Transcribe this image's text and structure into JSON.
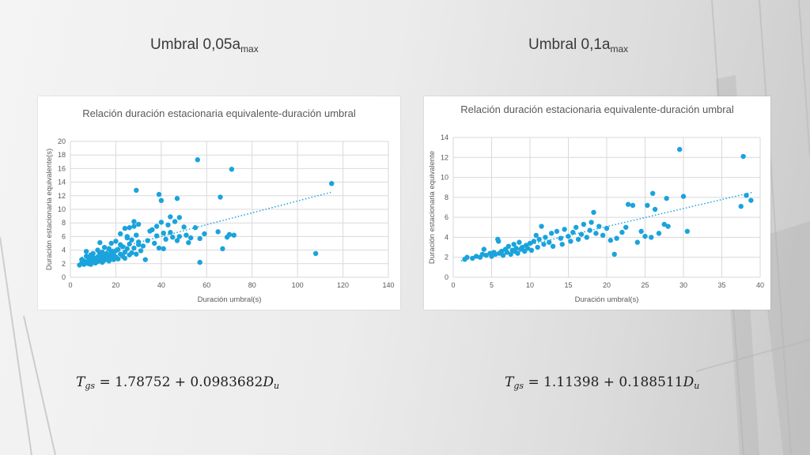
{
  "headings": [
    {
      "main": "Umbral 0,05a",
      "sub": "max"
    },
    {
      "main": "Umbral 0,1a",
      "sub": "max"
    }
  ],
  "formulas": [
    {
      "lhs": "T",
      "lhs_sub": "gs",
      "rhs": "= 1.78752 + 0.0983682",
      "var": "D",
      "var_sub": "u"
    },
    {
      "lhs": "T",
      "lhs_sub": "gs",
      "rhs": "= 1.11398 + 0.188511",
      "var": "D",
      "var_sub": "u"
    }
  ],
  "colors": {
    "marker": "#1aa3dc",
    "trend": "#1aa3dc",
    "grid": "#d9d9d9",
    "text": "#595959"
  },
  "chart_data": [
    {
      "type": "scatter",
      "title": "Relación duración estacionaria equivalente-duración umbral",
      "xlabel": "Duración umbral(s)",
      "ylabel": "Duración estacionaria equivalente(s)",
      "xlim": [
        0,
        140
      ],
      "ylim": [
        0,
        20
      ],
      "xticks": [
        0,
        20,
        40,
        60,
        80,
        100,
        120,
        140
      ],
      "yticks": [
        0,
        2,
        4,
        6,
        8,
        10,
        12,
        14,
        16,
        18,
        20
      ],
      "grid": true,
      "trendline": {
        "type": "linear",
        "style": "dotted",
        "x_range": [
          5,
          115
        ]
      },
      "points": [
        [
          4,
          1.8
        ],
        [
          5,
          2.1
        ],
        [
          5,
          2.6
        ],
        [
          6,
          1.9
        ],
        [
          6,
          2.4
        ],
        [
          7,
          2.2
        ],
        [
          7,
          3.1
        ],
        [
          7,
          3.8
        ],
        [
          8,
          2.0
        ],
        [
          8,
          2.8
        ],
        [
          9,
          2.3
        ],
        [
          9,
          1.9
        ],
        [
          9,
          3.3
        ],
        [
          10,
          2.5
        ],
        [
          10,
          2.9
        ],
        [
          10,
          3.5
        ],
        [
          11,
          2.1
        ],
        [
          11,
          2.7
        ],
        [
          12,
          2.3
        ],
        [
          12,
          3.0
        ],
        [
          12,
          4.0
        ],
        [
          13,
          2.6
        ],
        [
          13,
          3.4
        ],
        [
          13,
          5.1
        ],
        [
          14,
          2.2
        ],
        [
          14,
          2.9
        ],
        [
          14,
          3.7
        ],
        [
          15,
          2.5
        ],
        [
          15,
          3.1
        ],
        [
          15,
          4.4
        ],
        [
          16,
          2.8
        ],
        [
          16,
          3.5
        ],
        [
          17,
          2.4
        ],
        [
          17,
          3.2
        ],
        [
          17,
          4.2
        ],
        [
          18,
          2.9
        ],
        [
          18,
          3.8
        ],
        [
          18,
          5.0
        ],
        [
          19,
          2.6
        ],
        [
          19,
          3.3
        ],
        [
          20,
          3.0
        ],
        [
          20,
          3.9
        ],
        [
          20,
          5.3
        ],
        [
          21,
          2.7
        ],
        [
          21,
          4.1
        ],
        [
          22,
          3.4
        ],
        [
          22,
          4.8
        ],
        [
          22,
          6.4
        ],
        [
          23,
          3.1
        ],
        [
          23,
          4.5
        ],
        [
          24,
          2.8
        ],
        [
          24,
          3.7
        ],
        [
          24,
          7.2
        ],
        [
          25,
          4.2
        ],
        [
          25,
          5.8
        ],
        [
          25,
          6.0
        ],
        [
          26,
          3.3
        ],
        [
          26,
          4.9
        ],
        [
          26,
          7.3
        ],
        [
          27,
          3.6
        ],
        [
          27,
          5.5
        ],
        [
          28,
          4.3
        ],
        [
          28,
          7.5
        ],
        [
          28,
          8.2
        ],
        [
          29,
          3.4
        ],
        [
          29,
          6.2
        ],
        [
          29,
          12.8
        ],
        [
          30,
          4.8
        ],
        [
          30,
          7.8
        ],
        [
          30,
          5.2
        ],
        [
          31,
          3.9
        ],
        [
          32,
          4.6
        ],
        [
          33,
          2.6
        ],
        [
          34,
          5.4
        ],
        [
          35,
          6.8
        ],
        [
          36,
          7.0
        ],
        [
          37,
          5.0
        ],
        [
          38,
          6.1
        ],
        [
          38,
          7.5
        ],
        [
          39,
          12.2
        ],
        [
          39,
          4.3
        ],
        [
          40,
          8.1
        ],
        [
          40,
          11.3
        ],
        [
          41,
          6.5
        ],
        [
          41,
          4.2
        ],
        [
          42,
          5.6
        ],
        [
          43,
          7.7
        ],
        [
          44,
          8.9
        ],
        [
          44,
          6.6
        ],
        [
          45,
          5.9
        ],
        [
          46,
          8.2
        ],
        [
          47,
          11.6
        ],
        [
          47,
          5.4
        ],
        [
          48,
          6.0
        ],
        [
          48,
          8.8
        ],
        [
          50,
          7.4
        ],
        [
          51,
          6.2
        ],
        [
          52,
          5.1
        ],
        [
          53,
          5.8
        ],
        [
          55,
          7.3
        ],
        [
          56,
          17.3
        ],
        [
          57,
          5.7
        ],
        [
          57,
          2.2
        ],
        [
          59,
          6.4
        ],
        [
          65,
          6.7
        ],
        [
          66,
          11.8
        ],
        [
          67,
          4.2
        ],
        [
          69,
          5.9
        ],
        [
          70,
          6.3
        ],
        [
          71,
          15.9
        ],
        [
          72,
          6.2
        ],
        [
          108,
          3.5
        ],
        [
          115,
          13.8
        ]
      ]
    },
    {
      "type": "scatter",
      "title": "Relación duración estacionaria equivalente-duración umbral",
      "xlabel": "Duración umbral(s)",
      "ylabel": "Duración estacionaria equivalente",
      "xlim": [
        0,
        40
      ],
      "ylim": [
        0,
        14
      ],
      "xticks": [
        0,
        5,
        10,
        15,
        20,
        25,
        30,
        35,
        40
      ],
      "yticks": [
        0,
        2,
        4,
        6,
        8,
        10,
        12,
        14
      ],
      "grid": true,
      "trendline": {
        "type": "linear",
        "style": "dotted",
        "x_range": [
          1,
          39
        ]
      },
      "points": [
        [
          1.5,
          1.8
        ],
        [
          1.8,
          2.0
        ],
        [
          2.5,
          1.9
        ],
        [
          3.0,
          2.1
        ],
        [
          3.5,
          2.0
        ],
        [
          3.8,
          2.3
        ],
        [
          4.0,
          2.8
        ],
        [
          4.3,
          2.2
        ],
        [
          4.8,
          2.4
        ],
        [
          5.0,
          2.1
        ],
        [
          5.3,
          2.5
        ],
        [
          5.5,
          2.3
        ],
        [
          5.8,
          3.8
        ],
        [
          5.9,
          3.6
        ],
        [
          6.0,
          2.4
        ],
        [
          6.3,
          2.6
        ],
        [
          6.5,
          2.2
        ],
        [
          6.8,
          2.8
        ],
        [
          7.0,
          2.5
        ],
        [
          7.2,
          3.1
        ],
        [
          7.5,
          2.3
        ],
        [
          7.7,
          2.7
        ],
        [
          7.9,
          3.3
        ],
        [
          8.0,
          2.6
        ],
        [
          8.2,
          2.9
        ],
        [
          8.4,
          2.4
        ],
        [
          8.6,
          3.5
        ],
        [
          8.8,
          2.8
        ],
        [
          9.0,
          3.0
        ],
        [
          9.3,
          2.6
        ],
        [
          9.5,
          3.2
        ],
        [
          9.7,
          2.9
        ],
        [
          10.0,
          3.4
        ],
        [
          10.2,
          2.7
        ],
        [
          10.5,
          3.6
        ],
        [
          10.8,
          4.2
        ],
        [
          11.0,
          3.0
        ],
        [
          11.2,
          3.8
        ],
        [
          11.5,
          5.1
        ],
        [
          11.8,
          3.3
        ],
        [
          12.0,
          4.0
        ],
        [
          12.5,
          3.5
        ],
        [
          12.8,
          4.4
        ],
        [
          13.0,
          3.1
        ],
        [
          13.5,
          4.6
        ],
        [
          14.0,
          3.9
        ],
        [
          14.2,
          3.3
        ],
        [
          14.5,
          4.8
        ],
        [
          15.0,
          4.1
        ],
        [
          15.3,
          3.6
        ],
        [
          15.6,
          4.5
        ],
        [
          16.0,
          5.0
        ],
        [
          16.3,
          3.8
        ],
        [
          16.7,
          4.3
        ],
        [
          17.0,
          5.3
        ],
        [
          17.4,
          4.0
        ],
        [
          17.8,
          4.7
        ],
        [
          18.0,
          5.5
        ],
        [
          18.3,
          6.5
        ],
        [
          18.6,
          4.4
        ],
        [
          19.0,
          5.1
        ],
        [
          19.5,
          4.2
        ],
        [
          20.0,
          4.9
        ],
        [
          20.5,
          3.7
        ],
        [
          21.0,
          2.3
        ],
        [
          21.3,
          3.9
        ],
        [
          22.0,
          4.5
        ],
        [
          22.5,
          5.0
        ],
        [
          22.8,
          7.3
        ],
        [
          23.4,
          7.2
        ],
        [
          24.0,
          3.5
        ],
        [
          24.5,
          4.6
        ],
        [
          25.0,
          4.1
        ],
        [
          25.3,
          7.2
        ],
        [
          25.8,
          4.0
        ],
        [
          26.0,
          8.4
        ],
        [
          26.3,
          6.8
        ],
        [
          26.8,
          4.4
        ],
        [
          27.5,
          5.3
        ],
        [
          27.8,
          7.9
        ],
        [
          28.0,
          5.1
        ],
        [
          29.5,
          12.8
        ],
        [
          30.0,
          8.1
        ],
        [
          30.5,
          4.6
        ],
        [
          37.5,
          7.1
        ],
        [
          37.8,
          12.1
        ],
        [
          38.2,
          8.2
        ],
        [
          38.8,
          7.7
        ]
      ]
    }
  ]
}
